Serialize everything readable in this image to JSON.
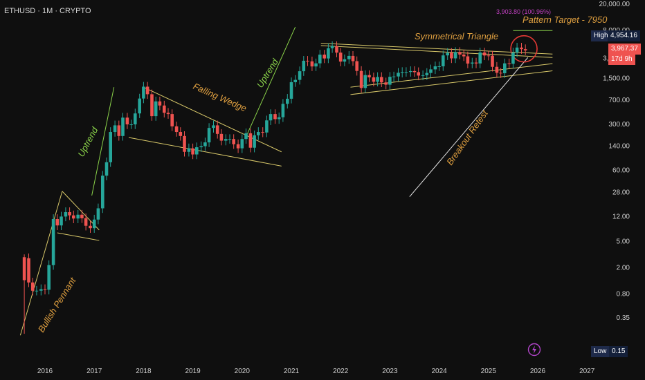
{
  "header": {
    "symbol_line": "ETHUSD · 1M · CRYPTO"
  },
  "colors": {
    "background": "#0f0f0f",
    "up": "#26a69a",
    "down": "#ef5350",
    "trendline": "#d9c96a",
    "uptrend_label": "#8bd44a",
    "pattern_label": "#e0a040",
    "target_line": "#8bd44a",
    "retest_arrow": "#e6e6e6",
    "circle": "#e53935",
    "measure_text": "#c040c0"
  },
  "chart_data": {
    "type": "candlestick",
    "title": "",
    "y_scale": "log",
    "y_ticks": [
      "20,000.00",
      "8,000.00",
      "3,000.00",
      "1,500.00",
      "700.00",
      "300.00",
      "140.00",
      "60.00",
      "28.00",
      "12.00",
      "5.00",
      "2.00",
      "0.80",
      "0.35",
      "0.15"
    ],
    "y_tick_values": [
      20000,
      8000,
      3000,
      1500,
      700,
      300,
      140,
      60,
      28,
      12,
      5,
      2,
      0.8,
      0.35,
      0.15
    ],
    "x_ticks": [
      "2016",
      "2017",
      "2018",
      "2019",
      "2020",
      "2021",
      "2022",
      "2023",
      "2024",
      "2025",
      "2026",
      "2027"
    ],
    "x_tick_values": [
      2016,
      2017,
      2018,
      2019,
      2020,
      2021,
      2022,
      2023,
      2024,
      2025,
      2026,
      2027
    ],
    "ylim": [
      0.15,
      20000
    ],
    "xlim": [
      2015.5,
      2027.5
    ],
    "close_path": [
      [
        2015.58,
        2.8
      ],
      [
        2015.67,
        1.2
      ],
      [
        2015.75,
        0.9
      ],
      [
        2015.83,
        0.9
      ],
      [
        2015.92,
        0.95
      ],
      [
        2016.0,
        0.93
      ],
      [
        2016.08,
        2.2
      ],
      [
        2016.17,
        11.0
      ],
      [
        2016.25,
        8.8
      ],
      [
        2016.33,
        12.0
      ],
      [
        2016.42,
        14.0
      ],
      [
        2016.5,
        12.5
      ],
      [
        2016.58,
        11.2
      ],
      [
        2016.67,
        12.8
      ],
      [
        2016.75,
        11.3
      ],
      [
        2016.83,
        8.7
      ],
      [
        2016.92,
        8.0
      ],
      [
        2017.0,
        10.8
      ],
      [
        2017.08,
        16.0
      ],
      [
        2017.17,
        50.0
      ],
      [
        2017.25,
        80.0
      ],
      [
        2017.33,
        230.0
      ],
      [
        2017.42,
        290.0
      ],
      [
        2017.5,
        200.0
      ],
      [
        2017.58,
        380.0
      ],
      [
        2017.67,
        300.0
      ],
      [
        2017.75,
        300.0
      ],
      [
        2017.83,
        440.0
      ],
      [
        2017.92,
        740.0
      ],
      [
        2018.0,
        1120.0
      ],
      [
        2018.08,
        860.0
      ],
      [
        2018.17,
        400.0
      ],
      [
        2018.25,
        670.0
      ],
      [
        2018.33,
        580.0
      ],
      [
        2018.42,
        450.0
      ],
      [
        2018.5,
        430.0
      ],
      [
        2018.58,
        280.0
      ],
      [
        2018.67,
        230.0
      ],
      [
        2018.75,
        200.0
      ],
      [
        2018.83,
        115.0
      ],
      [
        2018.92,
        130.0
      ],
      [
        2019.0,
        105.0
      ],
      [
        2019.08,
        135.0
      ],
      [
        2019.17,
        140.0
      ],
      [
        2019.25,
        160.0
      ],
      [
        2019.33,
        265.0
      ],
      [
        2019.42,
        290.0
      ],
      [
        2019.5,
        215.0
      ],
      [
        2019.58,
        170.0
      ],
      [
        2019.67,
        180.0
      ],
      [
        2019.75,
        180.0
      ],
      [
        2019.83,
        150.0
      ],
      [
        2019.92,
        130.0
      ],
      [
        2020.0,
        180.0
      ],
      [
        2020.08,
        220.0
      ],
      [
        2020.17,
        133.0
      ],
      [
        2020.25,
        205.0
      ],
      [
        2020.33,
        230.0
      ],
      [
        2020.42,
        226.0
      ],
      [
        2020.5,
        345.0
      ],
      [
        2020.58,
        430.0
      ],
      [
        2020.67,
        360.0
      ],
      [
        2020.75,
        385.0
      ],
      [
        2020.83,
        615.0
      ],
      [
        2020.92,
        735.0
      ],
      [
        2021.0,
        1310.0
      ],
      [
        2021.08,
        1420.0
      ],
      [
        2021.17,
        1920.0
      ],
      [
        2021.25,
        2770.0
      ],
      [
        2021.33,
        2710.0
      ],
      [
        2021.42,
        2270.0
      ],
      [
        2021.5,
        2530.0
      ],
      [
        2021.58,
        3430.0
      ],
      [
        2021.67,
        3000.0
      ],
      [
        2021.75,
        4290.0
      ],
      [
        2021.83,
        4630.0
      ],
      [
        2021.92,
        3680.0
      ],
      [
        2022.0,
        2690.0
      ],
      [
        2022.08,
        2920.0
      ],
      [
        2022.17,
        3280.0
      ],
      [
        2022.25,
        2730.0
      ],
      [
        2022.33,
        1940.0
      ],
      [
        2022.42,
        1070.0
      ],
      [
        2022.5,
        1680.0
      ],
      [
        2022.58,
        1550.0
      ],
      [
        2022.67,
        1330.0
      ],
      [
        2022.75,
        1570.0
      ],
      [
        2022.83,
        1300.0
      ],
      [
        2022.92,
        1200.0
      ],
      [
        2023.0,
        1580.0
      ],
      [
        2023.08,
        1600.0
      ],
      [
        2023.17,
        1820.0
      ],
      [
        2023.25,
        1870.0
      ],
      [
        2023.33,
        1870.0
      ],
      [
        2023.42,
        1930.0
      ],
      [
        2023.5,
        1860.0
      ],
      [
        2023.58,
        1650.0
      ],
      [
        2023.67,
        1670.0
      ],
      [
        2023.75,
        1810.0
      ],
      [
        2023.83,
        2050.0
      ],
      [
        2023.92,
        2280.0
      ],
      [
        2024.0,
        2280.0
      ],
      [
        2024.08,
        3340.0
      ],
      [
        2024.17,
        3650.0
      ],
      [
        2024.25,
        3010.0
      ],
      [
        2024.33,
        3760.0
      ],
      [
        2024.42,
        3440.0
      ],
      [
        2024.5,
        3230.0
      ],
      [
        2024.58,
        2510.0
      ],
      [
        2024.67,
        2600.0
      ],
      [
        2024.75,
        2520.0
      ],
      [
        2024.83,
        3700.0
      ],
      [
        2024.92,
        3330.0
      ],
      [
        2025.0,
        3300.0
      ],
      [
        2025.08,
        2240.0
      ],
      [
        2025.17,
        1820.0
      ],
      [
        2025.25,
        1790.0
      ],
      [
        2025.33,
        2530.0
      ],
      [
        2025.42,
        2490.0
      ],
      [
        2025.5,
        3700.0
      ],
      [
        2025.58,
        4390.0
      ],
      [
        2025.67,
        4150.0
      ],
      [
        2025.75,
        3967.37
      ]
    ],
    "annotations": {
      "bullish_pennant": "Bullish Pennant",
      "uptrend_1": "Uptrend",
      "falling_wedge": "Falling Wedge",
      "uptrend_2": "Uptrend",
      "symmetrical_triangle": "Symmetrical Triangle",
      "pattern_target": "Pattern Target - 7950",
      "breakout_retest": "Breakout Retest",
      "measure": "3,903.80 (100.96%)"
    },
    "markers": {
      "high_label": "High",
      "high_value": "4,954.16",
      "last_price": "3,967.37",
      "countdown": "17d 9h",
      "low_label": "Low",
      "low_value": "0.15"
    },
    "legend": "none",
    "grid": false
  }
}
